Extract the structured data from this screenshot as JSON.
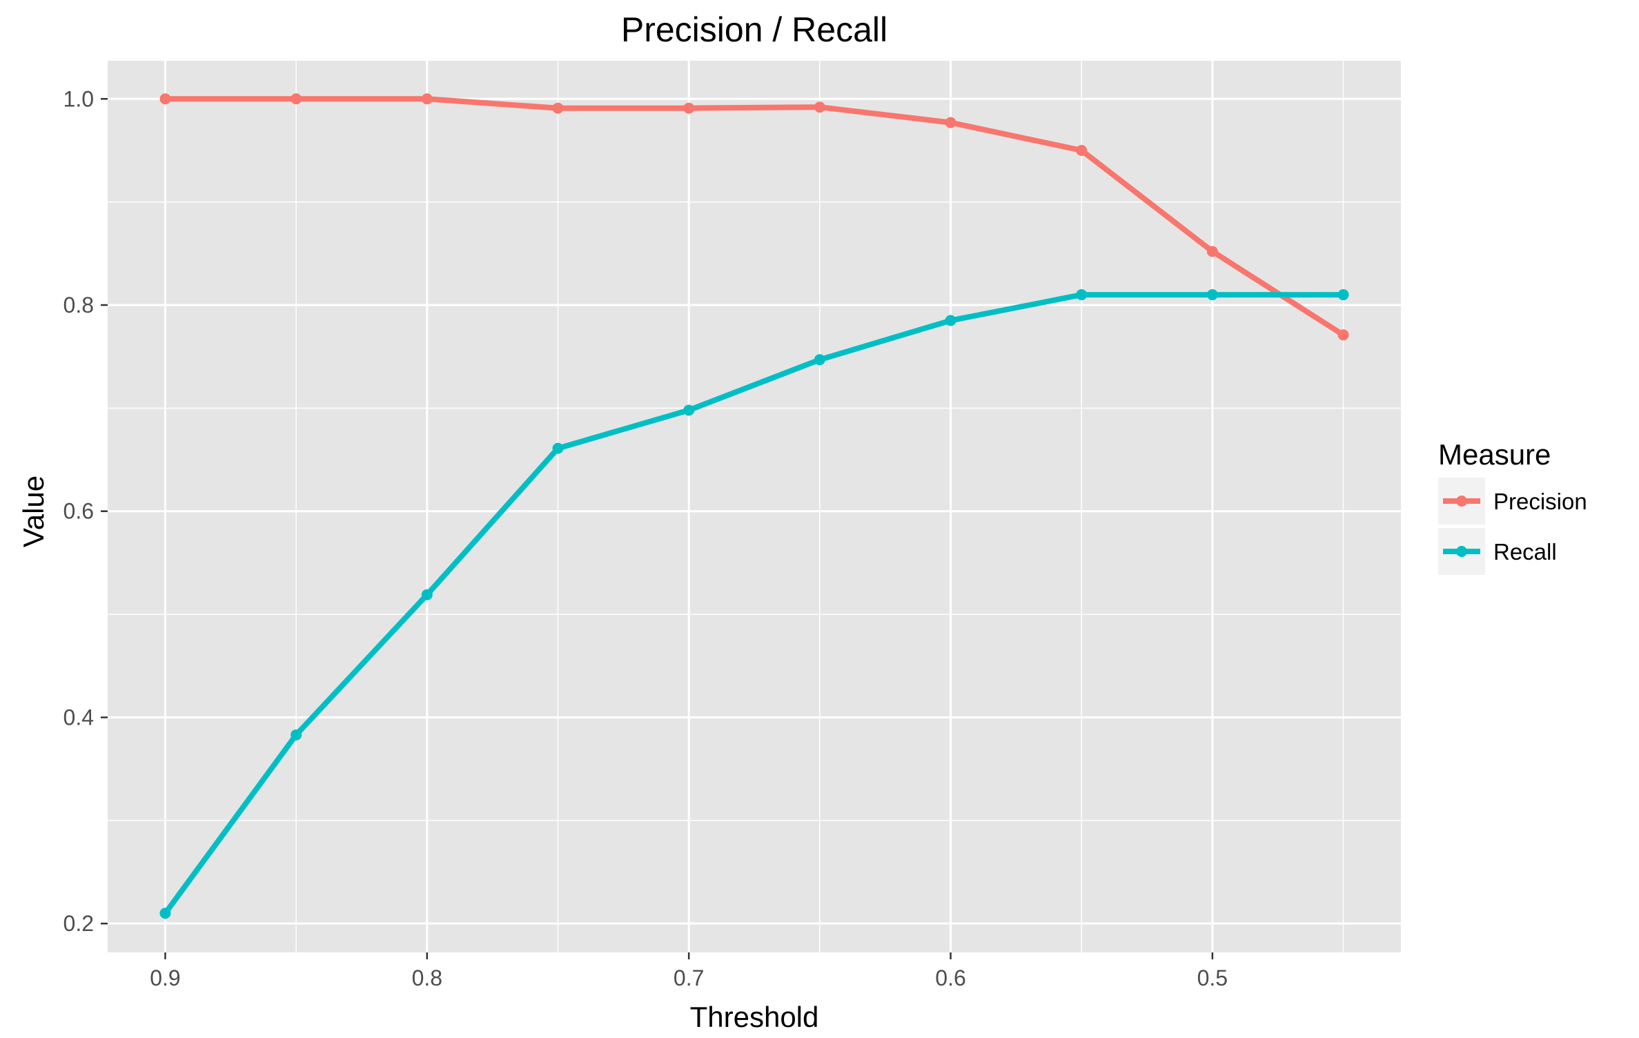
{
  "chart_data": {
    "type": "line",
    "title": "Precision / Recall",
    "xlabel": "Threshold",
    "ylabel": "Value",
    "x": [
      0.9,
      0.85,
      0.8,
      0.75,
      0.7,
      0.65,
      0.6,
      0.55,
      0.5,
      0.45
    ],
    "x_reversed": true,
    "xlim": [
      0.922,
      0.428
    ],
    "ylim": [
      0.172,
      1.037
    ],
    "xticks": [
      0.9,
      0.8,
      0.7,
      0.6,
      0.5
    ],
    "xtick_labels": [
      "0.9",
      "0.8",
      "0.7",
      "0.6",
      "0.5"
    ],
    "yticks": [
      0.2,
      0.4,
      0.6,
      0.8,
      1.0
    ],
    "ytick_labels": [
      "0.2",
      "0.4",
      "0.6",
      "0.8",
      "1.0"
    ],
    "grid": true,
    "legend_position": "right",
    "legend_title": "Measure",
    "series": [
      {
        "name": "Precision",
        "color": "#F8766D",
        "values": [
          1.0,
          1.0,
          1.0,
          0.991,
          0.991,
          0.992,
          0.977,
          0.95,
          0.852,
          0.771
        ]
      },
      {
        "name": "Recall",
        "color": "#00BFC4",
        "values": [
          0.21,
          0.383,
          0.519,
          0.661,
          0.698,
          0.747,
          0.785,
          0.81,
          0.81,
          0.81
        ]
      }
    ],
    "panel_color": "#E5E5E5",
    "grid_color": "#FFFFFF"
  }
}
